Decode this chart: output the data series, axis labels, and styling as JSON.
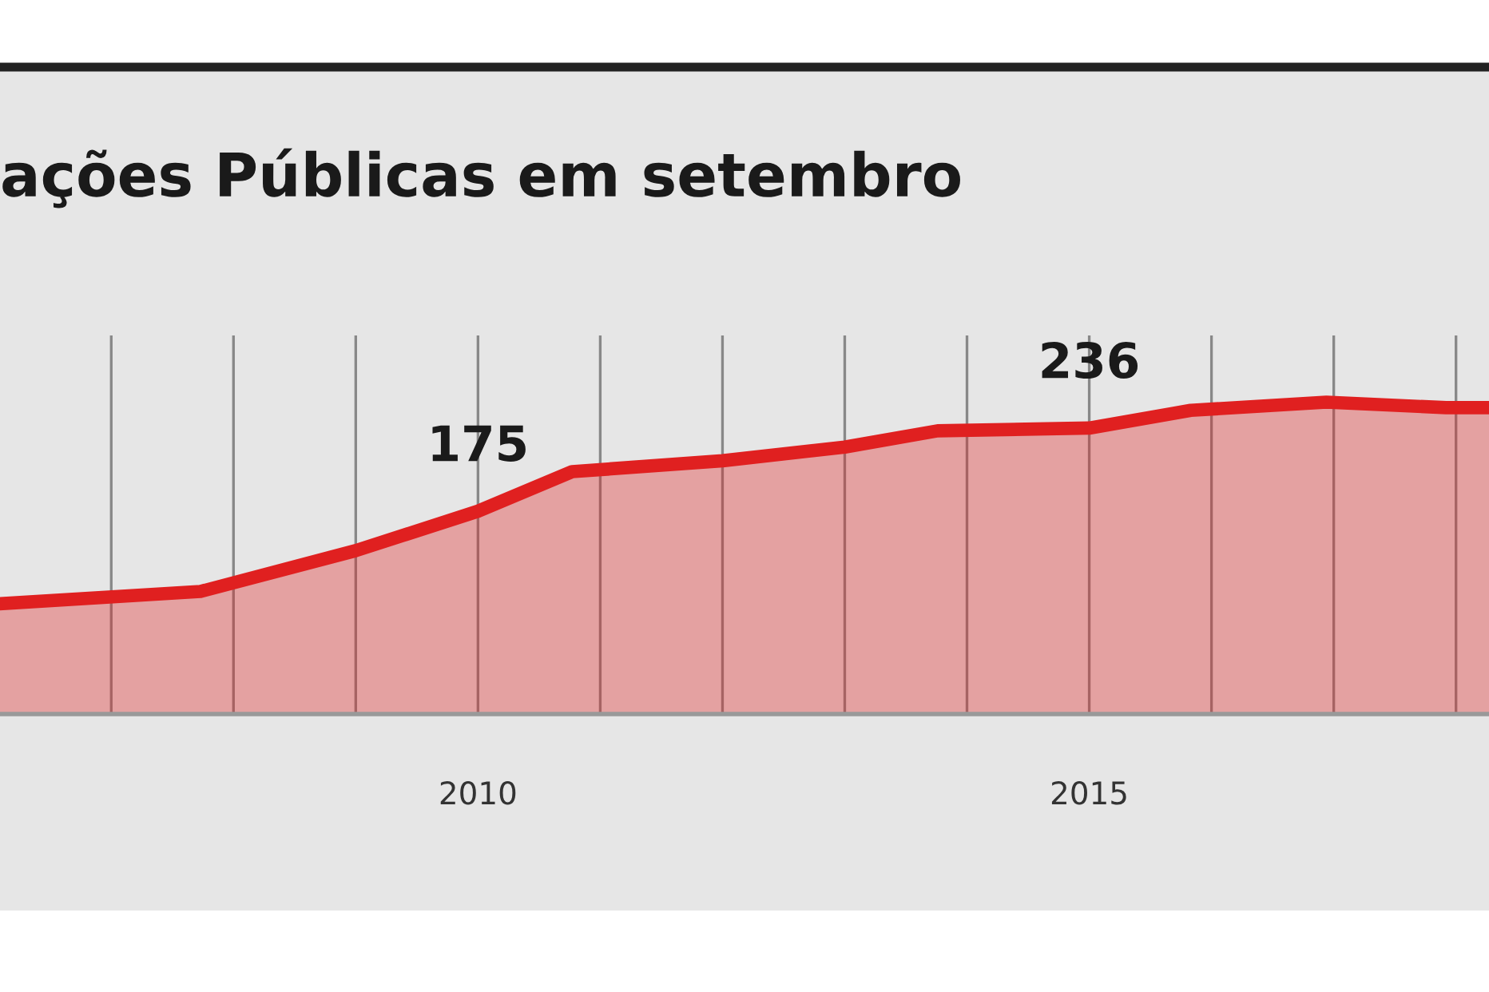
{
  "chart_data": {
    "type": "area",
    "title": "ações Públicas em setembro",
    "ylim": [
      26,
      304
    ],
    "x": [
      2006.09,
      2007.73,
      2009.0,
      2010.0,
      2010.77,
      2012.0,
      2013.0,
      2013.76,
      2015.0,
      2015.83,
      2016.94,
      2017.92,
      2018.27
    ],
    "series": [
      {
        "color": "#e02020",
        "values": [
          107,
          116,
          146,
          175,
          204,
          212,
          222,
          234,
          236,
          249,
          255,
          251,
          251
        ],
        "value_labels": [
          null,
          null,
          null,
          "175",
          null,
          null,
          null,
          null,
          "236",
          null,
          null,
          null,
          null
        ]
      }
    ],
    "xlim": [
      2006.09,
      2018.27
    ],
    "xticks": [
      {
        "value": 2007,
        "label": null
      },
      {
        "value": 2008,
        "label": null
      },
      {
        "value": 2009,
        "label": null
      },
      2010,
      {
        "value": 2011,
        "label": null
      },
      {
        "value": 2012,
        "label": null
      },
      {
        "value": 2013,
        "label": null
      },
      {
        "value": 2014,
        "label": null
      },
      2015,
      {
        "value": 2016,
        "label": null
      },
      {
        "value": 2017,
        "label": null
      },
      {
        "value": 2018,
        "label": null
      }
    ],
    "grid": "x",
    "legend": false,
    "marker": "none",
    "line_style": "solid"
  }
}
